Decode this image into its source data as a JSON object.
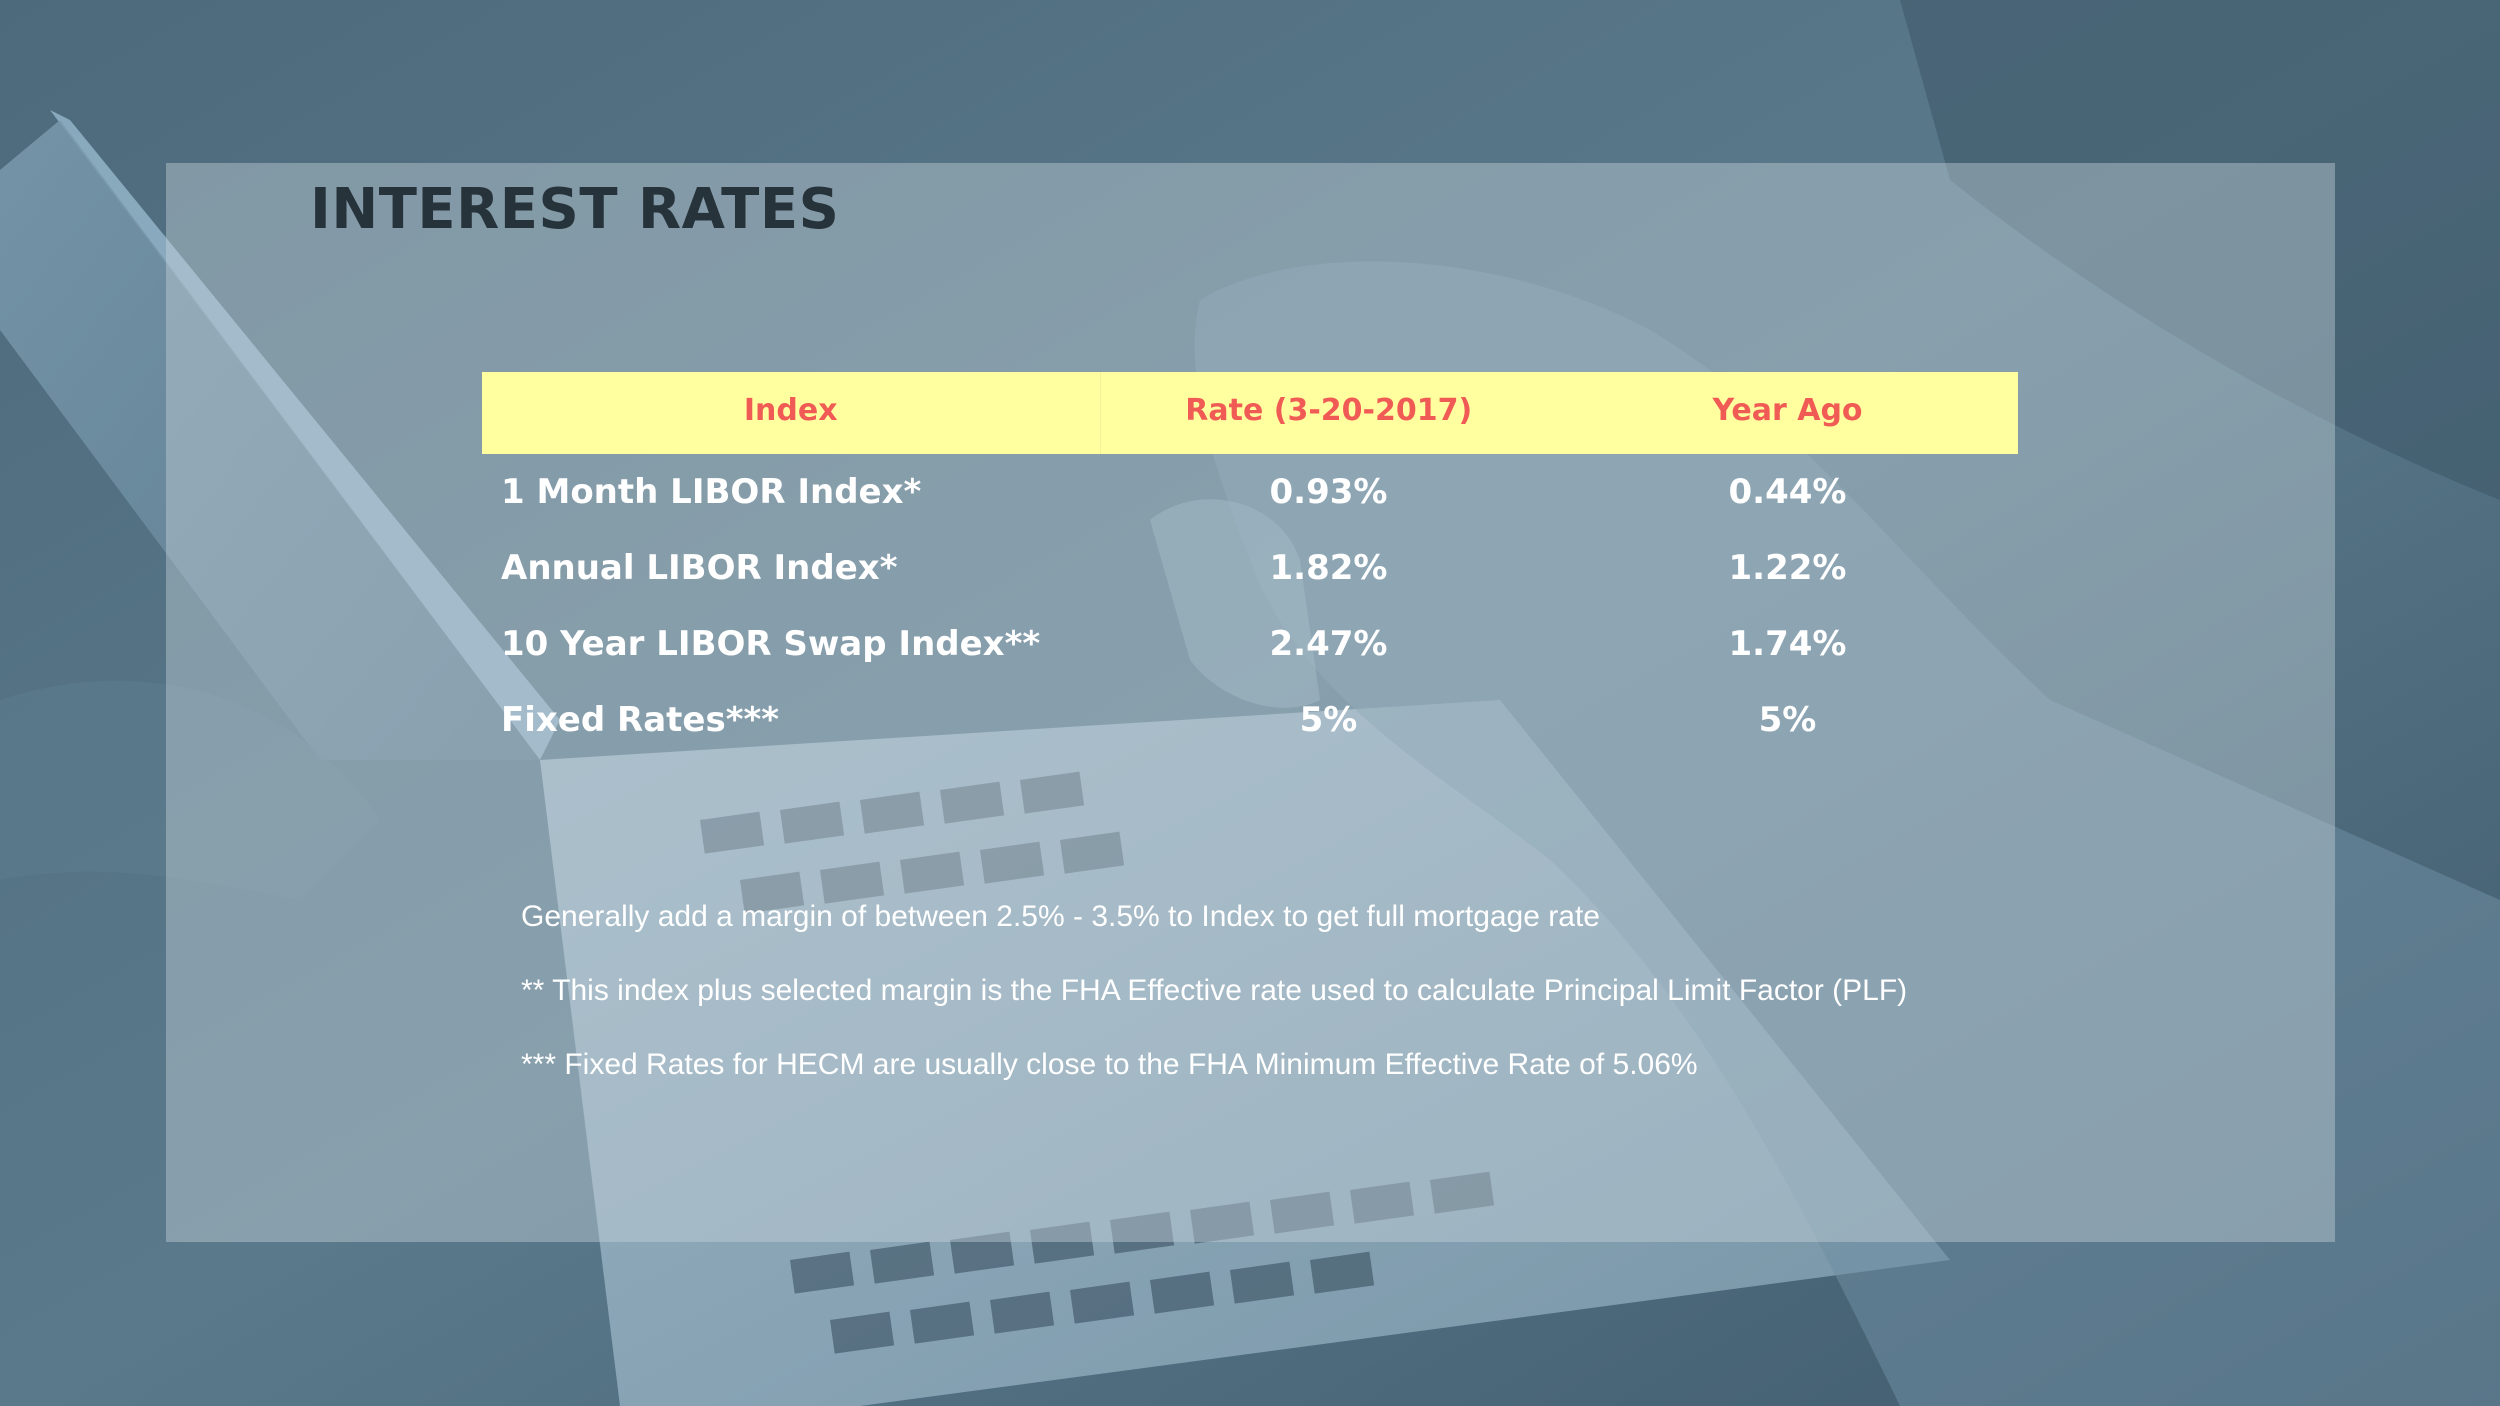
{
  "slide": {
    "title": "INTEREST RATES"
  },
  "table": {
    "headers": [
      "Index",
      "Rate (3-20-2017)",
      "Year Ago"
    ],
    "rows": [
      {
        "index": "1 Month LIBOR Index*",
        "rate": "0.93%",
        "year_ago": "0.44%"
      },
      {
        "index": "Annual LIBOR Index*",
        "rate": "1.82%",
        "year_ago": "1.22%"
      },
      {
        "index": "10 Year LIBOR Swap Index**",
        "rate": "2.47%",
        "year_ago": "1.74%"
      },
      {
        "index": "Fixed Rates***",
        "rate": "5%",
        "year_ago": "5%"
      }
    ]
  },
  "notes": [
    "Generally add a margin of between 2.5% - 3.5% to Index to get full mortgage rate",
    "** This index plus selected margin is the FHA Effective rate used to calculate Principal Limit Factor (PLF)",
    "*** Fixed Rates for HECM are usually close to the FHA Minimum Effective Rate of 5.06%"
  ],
  "colors": {
    "header_background": "#ffff9f",
    "header_text": "#f05c55",
    "title_text": "#27333b",
    "body_text": "#ffffff",
    "background": "#4a6678"
  }
}
